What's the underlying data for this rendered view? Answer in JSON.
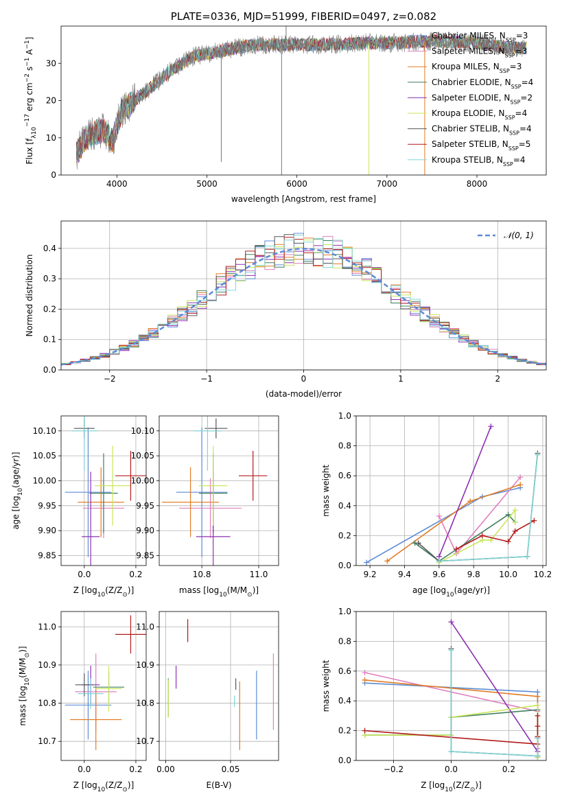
{
  "colors": {
    "chabrier_miles": "#5b8bd6",
    "salpeter_miles": "#e07fbf",
    "kroupa_miles": "#e07b24",
    "chabrier_elodie": "#3f7f5f",
    "salpeter_elodie": "#8e2fb2",
    "kroupa_elodie": "#c9e65a",
    "chabrier_stelib": "#555555",
    "salpeter_stelib": "#b21a1a",
    "kroupa_stelib": "#7fd6d6",
    "spectrum_data": "#777777",
    "normal_curve": "#5b8bd6"
  },
  "chart_data": [
    {
      "id": "spectrum",
      "type": "line",
      "title": "PLATE=0336, MJD=51999, FIBERID=0497, z=0.082",
      "xlabel": "wavelength [Angstrom, rest frame]",
      "ylabel_parts": [
        "Flux [f",
        "λ",
        "10",
        "−17",
        " erg cm",
        "−2",
        " s",
        "−1",
        " A",
        "−1",
        "]"
      ],
      "xlim": [
        3380,
        8770
      ],
      "ylim": [
        0,
        40
      ],
      "xticks": [
        "4000",
        "5000",
        "6000",
        "7000",
        "8000"
      ],
      "xtick_values": [
        4000,
        5000,
        6000,
        7000,
        8000
      ],
      "yticks": [
        "0",
        "10",
        "20",
        "30"
      ],
      "ytick_values": [
        0,
        10,
        20,
        30
      ],
      "legend_position": "top-right",
      "grid": false,
      "x_range": [
        3550,
        8550
      ],
      "continuum": {
        "x": [
          3550,
          3700,
          3850,
          3950,
          4050,
          4250,
          4400,
          4600,
          4860,
          5100,
          5300,
          5500,
          5800,
          6100,
          6400,
          6800,
          7200,
          7500,
          8000,
          8300,
          8550
        ],
        "y": [
          6,
          11,
          12,
          9,
          17,
          21,
          24,
          28,
          32,
          33,
          34,
          35,
          35,
          35,
          35,
          35.5,
          35.5,
          36,
          35.5,
          34.5,
          34
        ]
      },
      "series": [
        {
          "name": "Chabrier MILES",
          "n_ssp": "3",
          "color_key": "chabrier_miles"
        },
        {
          "name": "Salpeter MILES",
          "n_ssp": "3",
          "color_key": "salpeter_miles"
        },
        {
          "name": "Kroupa MILES",
          "n_ssp": "3",
          "color_key": "kroupa_miles"
        },
        {
          "name": "Chabrier ELODIE",
          "n_ssp": "4",
          "color_key": "chabrier_elodie"
        },
        {
          "name": "Salpeter ELODIE",
          "n_ssp": "2",
          "color_key": "salpeter_elodie"
        },
        {
          "name": "Kroupa ELODIE",
          "n_ssp": "4",
          "color_key": "kroupa_elodie"
        },
        {
          "name": "Chabrier STELIB",
          "n_ssp": "4",
          "color_key": "chabrier_stelib"
        },
        {
          "name": "Salpeter STELIB",
          "n_ssp": "5",
          "color_key": "salpeter_stelib"
        },
        {
          "name": "Kroupa STELIB",
          "n_ssp": "4",
          "color_key": "kroupa_stelib"
        }
      ],
      "features": [
        {
          "x": 5160,
          "y": 3.5,
          "color_key": "spectrum_data"
        },
        {
          "x": 5830,
          "y": 0,
          "color_key": "spectrum_data"
        },
        {
          "x": 5880,
          "y": 42,
          "color_key": "spectrum_data"
        },
        {
          "x": 6800,
          "y": 0,
          "color_key": "kroupa_elodie"
        },
        {
          "x": 7420,
          "y": 0,
          "color_key": "kroupa_miles"
        }
      ]
    },
    {
      "id": "residuals",
      "type": "bar",
      "xlabel": "(data-model)/error",
      "ylabel": "Normed distribution",
      "xlim": [
        -2.5,
        2.5
      ],
      "ylim": [
        0,
        0.49
      ],
      "xticks": [
        "−2",
        "−1",
        "0",
        "1",
        "2"
      ],
      "xtick_values": [
        -2,
        -1,
        0,
        1,
        2
      ],
      "yticks": [
        "0.0",
        "0.1",
        "0.2",
        "0.3",
        "0.4"
      ],
      "ytick_values": [
        0,
        0.1,
        0.2,
        0.3,
        0.4
      ],
      "grid": true,
      "legend_position": "top-right",
      "curve_label": "𝒩(0, 1)",
      "bin_width": 0.1,
      "hist_series": [
        {
          "color_key": "chabrier_miles",
          "seed": 1
        },
        {
          "color_key": "salpeter_miles",
          "seed": 2
        },
        {
          "color_key": "kroupa_miles",
          "seed": 3
        },
        {
          "color_key": "chabrier_elodie",
          "seed": 4
        },
        {
          "color_key": "salpeter_elodie",
          "seed": 5
        },
        {
          "color_key": "kroupa_elodie",
          "seed": 6
        },
        {
          "color_key": "chabrier_stelib",
          "seed": 7
        },
        {
          "color_key": "salpeter_stelib",
          "seed": 8
        },
        {
          "color_key": "kroupa_stelib",
          "seed": 9
        }
      ]
    },
    {
      "id": "age_vs_z",
      "type": "scatter",
      "xlabel_parts": [
        "Z [log",
        "10",
        "(Z/Z",
        "⊙",
        ")]"
      ],
      "ylabel_parts": [
        "age  [log",
        "10",
        "(age/yr)]"
      ],
      "xlim": [
        -0.09,
        0.24
      ],
      "ylim": [
        9.83,
        10.13
      ],
      "xticks": [
        "0.0",
        "0.2"
      ],
      "xtick_values": [
        0,
        0.2
      ],
      "yticks": [
        "9.85",
        "9.90",
        "9.95",
        "10.00",
        "10.05",
        "10.10"
      ],
      "ytick_values": [
        9.85,
        9.9,
        9.95,
        10,
        10.05,
        10.1
      ],
      "grid": true,
      "points": [
        {
          "color_key": "chabrier_miles",
          "x": 0.015,
          "y": 9.977,
          "xerr": 0.09,
          "yerr": 0.13
        },
        {
          "color_key": "salpeter_miles",
          "x": 0.075,
          "y": 9.945,
          "xerr": 0.08,
          "yerr": 0.06
        },
        {
          "color_key": "kroupa_miles",
          "x": 0.065,
          "y": 9.957,
          "xerr": 0.09,
          "yerr": 0.07
        },
        {
          "color_key": "chabrier_elodie",
          "x": 0.075,
          "y": 9.975,
          "xerr": 0.055,
          "yerr": 0.08
        },
        {
          "color_key": "salpeter_elodie",
          "x": 0.025,
          "y": 9.888,
          "xerr": 0.035,
          "yerr": 0.13
        },
        {
          "color_key": "kroupa_elodie",
          "x": 0.11,
          "y": 9.99,
          "xerr": 0.07,
          "yerr": 0.08
        },
        {
          "color_key": "chabrier_stelib",
          "x": 0.0,
          "y": 10.105,
          "xerr": 0.04,
          "yerr": 0.02
        },
        {
          "color_key": "salpeter_stelib",
          "x": 0.18,
          "y": 10.01,
          "xerr": 0.06,
          "yerr": 0.05
        },
        {
          "color_key": "kroupa_stelib",
          "x": 0.0,
          "y": 10.1,
          "xerr": 0.05,
          "yerr": 0.08
        }
      ]
    },
    {
      "id": "age_vs_mass",
      "type": "scatter",
      "xlabel_parts": [
        "mass [log",
        "10",
        "(M/M",
        "⊙",
        ")]"
      ],
      "xlim": [
        10.65,
        11.07
      ],
      "ylim": [
        9.83,
        10.13
      ],
      "xticks": [
        "10.8",
        "11.0"
      ],
      "xtick_values": [
        10.8,
        11.0
      ],
      "yticks": [
        "9.85",
        "9.90",
        "9.95",
        "10.00",
        "10.05",
        "10.10"
      ],
      "ytick_values": [
        9.85,
        9.9,
        9.95,
        10,
        10.05,
        10.1
      ],
      "grid": true,
      "points": [
        {
          "color_key": "chabrier_miles",
          "x": 10.8,
          "y": 9.977,
          "xerr": 0.09,
          "yerr": 0.13
        },
        {
          "color_key": "salpeter_miles",
          "x": 10.83,
          "y": 9.945,
          "xerr": 0.11,
          "yerr": 0.06
        },
        {
          "color_key": "kroupa_miles",
          "x": 10.76,
          "y": 9.957,
          "xerr": 0.1,
          "yerr": 0.07
        },
        {
          "color_key": "chabrier_elodie",
          "x": 10.84,
          "y": 9.975,
          "xerr": 0.05,
          "yerr": 0.08
        },
        {
          "color_key": "salpeter_elodie",
          "x": 10.84,
          "y": 9.888,
          "xerr": 0.06,
          "yerr": 0.13
        },
        {
          "color_key": "kroupa_elodie",
          "x": 10.84,
          "y": 9.99,
          "xerr": 0.05,
          "yerr": 0.08
        },
        {
          "color_key": "chabrier_stelib",
          "x": 10.85,
          "y": 10.105,
          "xerr": 0.04,
          "yerr": 0.02
        },
        {
          "color_key": "salpeter_stelib",
          "x": 10.98,
          "y": 10.01,
          "xerr": 0.05,
          "yerr": 0.05
        },
        {
          "color_key": "kroupa_stelib",
          "x": 10.82,
          "y": 10.1,
          "xerr": 0.05,
          "yerr": 0.08
        }
      ]
    },
    {
      "id": "weight_vs_age",
      "type": "line",
      "xlabel_parts": [
        "age  [log",
        "10",
        "(age/yr)]"
      ],
      "ylabel": "mass weight",
      "xlim": [
        9.12,
        10.22
      ],
      "ylim": [
        0,
        1
      ],
      "xticks": [
        "9.2",
        "9.4",
        "9.6",
        "9.8",
        "10.0",
        "10.2"
      ],
      "xtick_values": [
        9.2,
        9.4,
        9.6,
        9.8,
        10.0,
        10.2
      ],
      "yticks": [
        "0.0",
        "0.2",
        "0.4",
        "0.6",
        "0.8",
        "1.0"
      ],
      "ytick_values": [
        0,
        0.2,
        0.4,
        0.6,
        0.8,
        1.0
      ],
      "grid": true,
      "series": [
        {
          "color_key": "chabrier_miles",
          "x": [
            9.18,
            9.85,
            10.07
          ],
          "y": [
            0.02,
            0.46,
            0.52
          ]
        },
        {
          "color_key": "salpeter_miles",
          "x": [
            9.6,
            9.7,
            10.07
          ],
          "y": [
            0.33,
            0.08,
            0.59
          ]
        },
        {
          "color_key": "kroupa_miles",
          "x": [
            9.3,
            9.78,
            10.07
          ],
          "y": [
            0.03,
            0.43,
            0.54
          ]
        },
        {
          "color_key": "chabrier_elodie",
          "x": [
            9.46,
            9.6,
            10.0,
            10.04
          ],
          "y": [
            0.15,
            0.03,
            0.34,
            0.29
          ]
        },
        {
          "color_key": "salpeter_elodie",
          "x": [
            9.6,
            9.9
          ],
          "y": [
            0.06,
            0.93
          ]
        },
        {
          "color_key": "kroupa_elodie",
          "x": [
            9.6,
            9.85,
            9.9,
            10.04,
            10.04
          ],
          "y": [
            0.02,
            0.17,
            0.17,
            0.37,
            0.29
          ]
        },
        {
          "color_key": "chabrier_stelib",
          "x": [
            9.48,
            9.6,
            10.11,
            10.17
          ],
          "y": [
            0.15,
            0.03,
            0.06,
            0.75
          ]
        },
        {
          "color_key": "salpeter_stelib",
          "x": [
            9.7,
            9.85,
            10.0,
            10.04,
            10.15
          ],
          "y": [
            0.11,
            0.2,
            0.16,
            0.23,
            0.3
          ]
        },
        {
          "color_key": "kroupa_stelib",
          "x": [
            9.6,
            10.11,
            10.17
          ],
          "y": [
            0.03,
            0.06,
            0.74
          ]
        }
      ]
    },
    {
      "id": "mass_vs_z",
      "type": "scatter",
      "xlabel_parts": [
        "Z [log",
        "10",
        "(Z/Z",
        "⊙",
        ")]"
      ],
      "ylabel_parts": [
        "mass [log",
        "10",
        "(M/M",
        "⊙",
        ")]"
      ],
      "xlim": [
        -0.09,
        0.24
      ],
      "ylim": [
        10.65,
        11.04
      ],
      "xticks": [
        "0.0",
        "0.2"
      ],
      "xtick_values": [
        0,
        0.2
      ],
      "yticks": [
        "10.7",
        "10.8",
        "10.9",
        "11.0"
      ],
      "ytick_values": [
        10.7,
        10.8,
        10.9,
        11.0
      ],
      "grid": true,
      "points": [
        {
          "color_key": "chabrier_miles",
          "x": 0.015,
          "y": 10.795,
          "xerr": 0.09,
          "yerr": 0.09
        },
        {
          "color_key": "salpeter_miles",
          "x": 0.045,
          "y": 10.83,
          "xerr": 0.08,
          "yerr": 0.1
        },
        {
          "color_key": "kroupa_miles",
          "x": 0.045,
          "y": 10.757,
          "xerr": 0.1,
          "yerr": 0.08
        },
        {
          "color_key": "chabrier_elodie",
          "x": 0.095,
          "y": 10.842,
          "xerr": 0.06,
          "yerr": 0.04
        },
        {
          "color_key": "salpeter_elodie",
          "x": 0.025,
          "y": 10.848,
          "xerr": 0.035,
          "yerr": 0.05
        },
        {
          "color_key": "kroupa_elodie",
          "x": 0.095,
          "y": 10.838,
          "xerr": 0.05,
          "yerr": 0.06
        },
        {
          "color_key": "chabrier_stelib",
          "x": 0.0,
          "y": 10.848,
          "xerr": 0.035,
          "yerr": 0.03
        },
        {
          "color_key": "salpeter_stelib",
          "x": 0.18,
          "y": 10.98,
          "xerr": 0.06,
          "yerr": 0.05
        },
        {
          "color_key": "kroupa_stelib",
          "x": 0.025,
          "y": 10.825,
          "xerr": 0.05,
          "yerr": 0.04
        }
      ]
    },
    {
      "id": "mass_vs_ebv",
      "type": "scatter",
      "xlabel": "E(B-V)",
      "xlim": [
        -0.005,
        0.087
      ],
      "ylim": [
        10.65,
        11.04
      ],
      "xticks": [
        "0.00",
        "0.05"
      ],
      "xtick_values": [
        0,
        0.05
      ],
      "yticks": [
        "10.7",
        "10.8",
        "10.9",
        "11.0"
      ],
      "ytick_values": [
        10.7,
        10.8,
        10.9,
        11.0
      ],
      "grid": true,
      "points": [
        {
          "color_key": "chabrier_miles",
          "x": 0.07,
          "y": 10.795,
          "xerr": 0,
          "yerr": 0.09
        },
        {
          "color_key": "salpeter_miles",
          "x": 0.083,
          "y": 10.83,
          "xerr": 0,
          "yerr": 0.1
        },
        {
          "color_key": "kroupa_miles",
          "x": 0.057,
          "y": 10.767,
          "xerr": 0,
          "yerr": 0.09
        },
        {
          "color_key": "chabrier_elodie",
          "x": 0.002,
          "y": 10.815,
          "xerr": 0,
          "yerr": 0.05
        },
        {
          "color_key": "salpeter_elodie",
          "x": 0.008,
          "y": 10.868,
          "xerr": 0,
          "yerr": 0.03
        },
        {
          "color_key": "kroupa_elodie",
          "x": 0.002,
          "y": 10.812,
          "xerr": 0,
          "yerr": 0.05
        },
        {
          "color_key": "chabrier_stelib",
          "x": 0.054,
          "y": 10.85,
          "xerr": 0,
          "yerr": 0.015
        },
        {
          "color_key": "salpeter_stelib",
          "x": 0.017,
          "y": 10.99,
          "xerr": 0,
          "yerr": 0.03
        },
        {
          "color_key": "kroupa_stelib",
          "x": 0.053,
          "y": 10.805,
          "xerr": 0,
          "yerr": 0.015
        }
      ]
    },
    {
      "id": "weight_vs_z",
      "type": "line",
      "xlabel_parts": [
        "Z [log",
        "10",
        "(Z/Z",
        "⊙",
        ")]"
      ],
      "ylabel": "mass weight",
      "xlim": [
        -0.33,
        0.33
      ],
      "ylim": [
        0,
        1
      ],
      "xticks": [
        "−0.2",
        "0.0",
        "0.2"
      ],
      "xtick_values": [
        -0.2,
        0,
        0.2
      ],
      "yticks": [
        "0.0",
        "0.2",
        "0.4",
        "0.6",
        "0.8",
        "1.0"
      ],
      "ytick_values": [
        0,
        0.2,
        0.4,
        0.6,
        0.8,
        1.0
      ],
      "grid": true,
      "series": [
        {
          "color_key": "chabrier_miles",
          "x": [
            -0.3,
            0.3,
            0.3
          ],
          "y": [
            0.52,
            0.46,
            0.02
          ]
        },
        {
          "color_key": "salpeter_miles",
          "x": [
            -0.3,
            0.3,
            0.3
          ],
          "y": [
            0.59,
            0.33,
            0.08
          ]
        },
        {
          "color_key": "kroupa_miles",
          "x": [
            -0.3,
            0.3,
            0.3
          ],
          "y": [
            0.54,
            0.43,
            0.03
          ]
        },
        {
          "color_key": "chabrier_elodie",
          "x": [
            -0.3,
            0.0,
            0.0,
            0.3,
            0.3
          ],
          "y": [
            0.17,
            0.17,
            0.29,
            0.34,
            0.03
          ]
        },
        {
          "color_key": "salpeter_elodie",
          "x": [
            0.0,
            0.3
          ],
          "y": [
            0.93,
            0.06
          ]
        },
        {
          "color_key": "kroupa_elodie",
          "x": [
            -0.3,
            0.0,
            0.0,
            0.3,
            0.3
          ],
          "y": [
            0.17,
            0.17,
            0.29,
            0.37,
            0.02
          ]
        },
        {
          "color_key": "chabrier_stelib",
          "x": [
            0.0,
            0.0,
            0.3,
            0.3
          ],
          "y": [
            0.75,
            0.06,
            0.03,
            0.15
          ]
        },
        {
          "color_key": "salpeter_stelib",
          "x": [
            -0.3,
            0.3,
            0.3,
            0.3,
            0.3
          ],
          "y": [
            0.2,
            0.11,
            0.3,
            0.23,
            0.16
          ]
        },
        {
          "color_key": "kroupa_stelib",
          "x": [
            0.0,
            0.0,
            0.3,
            0.3
          ],
          "y": [
            0.74,
            0.06,
            0.03,
            0.15
          ]
        }
      ]
    }
  ]
}
